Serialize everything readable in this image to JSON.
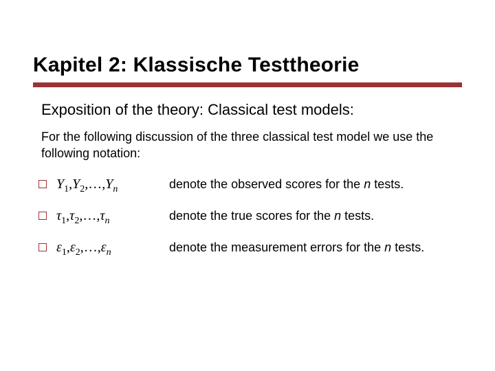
{
  "colors": {
    "accent": "#993333",
    "background": "#ffffff",
    "text": "#000000"
  },
  "typography": {
    "title_fontsize_pt": 30,
    "title_weight": "700",
    "subtitle_fontsize_pt": 22,
    "body_fontsize_pt": 18,
    "math_fontsize_pt": 20,
    "body_family": "Verdana",
    "math_family": "Times New Roman"
  },
  "title": "Kapitel 2: Klassische Testtheorie",
  "subtitle": "Exposition of the theory: Classical test models:",
  "intro": "For the following discussion of the three classical test model we use the following notation:",
  "rows": [
    {
      "math_html": "<span>Y</span><sub>1</sub><span class=\"upright\">,</span><span>Y</span><sub>2</sub><span class=\"upright\">,&hellip;,</span><span>Y</span><sub class=\"it\">n</sub>",
      "desc_prefix": "denote the observed scores for the ",
      "desc_em": "n",
      "desc_suffix": " tests."
    },
    {
      "math_html": "<span>&tau;</span><sub>1</sub><span class=\"upright\">,</span><span>&tau;</span><sub>2</sub><span class=\"upright\">,&hellip;,</span><span>&tau;</span><sub class=\"it\">n</sub>",
      "desc_prefix": "denote the true scores for the ",
      "desc_em": "n",
      "desc_suffix": " tests."
    },
    {
      "math_html": "<span>&epsilon;</span><sub>1</sub><span class=\"upright\">,</span><span>&epsilon;</span><sub>2</sub><span class=\"upright\">,&hellip;,</span><span>&epsilon;</span><sub class=\"it\">n</sub>",
      "desc_prefix": "denote the measurement errors for the ",
      "desc_em": "n",
      "desc_suffix": " tests."
    }
  ]
}
